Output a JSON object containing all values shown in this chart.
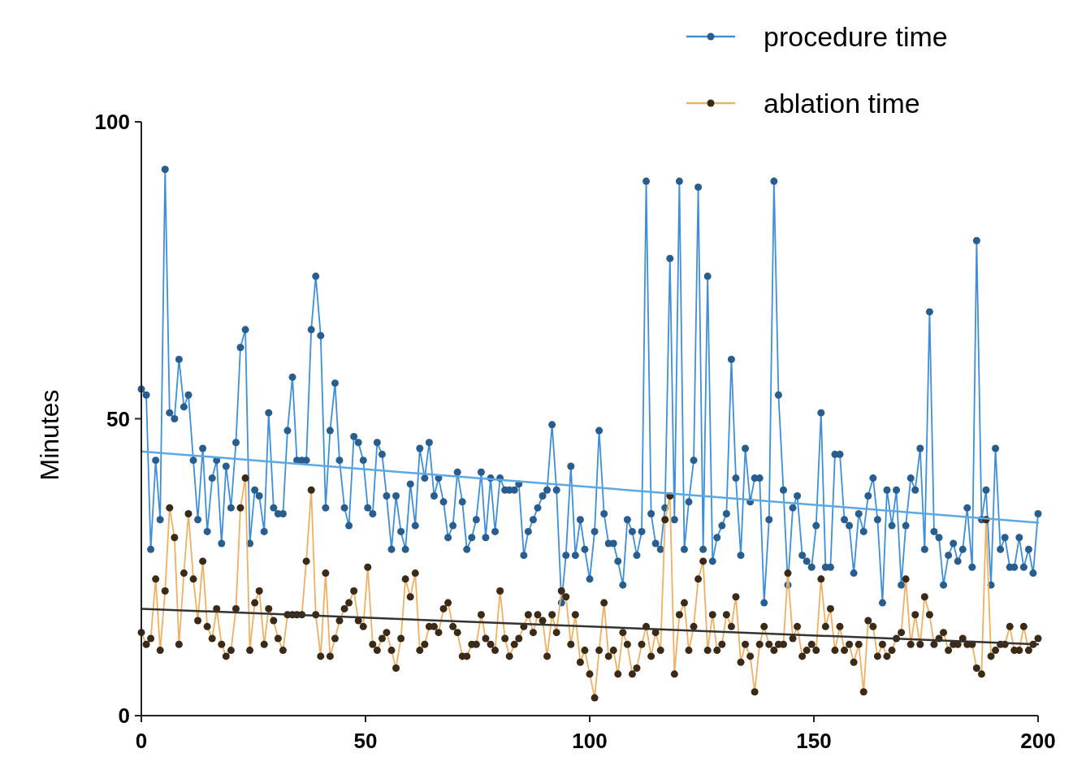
{
  "chart_data": {
    "type": "line",
    "ylabel": "Minutes",
    "xlim": [
      0,
      200
    ],
    "ylim": [
      0,
      100
    ],
    "xticks": [
      0,
      50,
      100,
      150,
      200
    ],
    "yticks": [
      0,
      50,
      100
    ],
    "grid": false,
    "legend": "top right",
    "marker": "circle",
    "line_style": "solid",
    "x": [
      0,
      1.1,
      2.1,
      3.2,
      4.2,
      5.3,
      6.3,
      7.4,
      8.4,
      9.5,
      10.5,
      11.6,
      12.6,
      13.7,
      14.7,
      15.8,
      16.8,
      17.9,
      18.9,
      20,
      21.1,
      22.1,
      23.2,
      24.2,
      25.3,
      26.3,
      27.4,
      28.4,
      29.5,
      30.5,
      31.6,
      32.6,
      33.7,
      34.7,
      35.8,
      36.8,
      37.9,
      38.9,
      40,
      41.1,
      42.1,
      43.2,
      44.2,
      45.3,
      46.3,
      47.4,
      48.4,
      49.5,
      50.5,
      51.6,
      52.6,
      53.7,
      54.7,
      55.8,
      56.8,
      57.9,
      58.9,
      60,
      61.1,
      62.1,
      63.2,
      64.2,
      65.3,
      66.3,
      67.4,
      68.4,
      69.5,
      70.5,
      71.6,
      72.6,
      73.7,
      74.7,
      75.8,
      76.8,
      77.9,
      78.9,
      80,
      81.1,
      82.1,
      83.2,
      84.2,
      85.3,
      86.3,
      87.4,
      88.4,
      89.5,
      90.5,
      91.6,
      92.6,
      93.7,
      94.7,
      95.8,
      96.8,
      97.9,
      98.9,
      100,
      101.1,
      102.1,
      103.2,
      104.2,
      105.3,
      106.3,
      107.4,
      108.4,
      109.5,
      110.5,
      111.6,
      112.6,
      113.7,
      114.7,
      115.8,
      116.8,
      117.9,
      118.9,
      120,
      121.1,
      122.1,
      123.2,
      124.2,
      125.3,
      126.3,
      127.4,
      128.4,
      129.5,
      130.5,
      131.6,
      132.6,
      133.7,
      134.7,
      135.8,
      136.8,
      137.9,
      138.9,
      140,
      141.1,
      142.1,
      143.2,
      144.2,
      145.3,
      146.3,
      147.4,
      148.4,
      149.5,
      150.5,
      151.6,
      152.6,
      153.7,
      154.7,
      155.8,
      156.8,
      157.9,
      158.9,
      160,
      161.1,
      162.1,
      163.2,
      164.2,
      165.3,
      166.3,
      167.4,
      168.4,
      169.5,
      170.5,
      171.6,
      172.6,
      173.7,
      174.7,
      175.8,
      176.8,
      177.9,
      178.9,
      180,
      181.1,
      182.1,
      183.2,
      184.2,
      185.3,
      186.3,
      187.4,
      188.4,
      189.5,
      190.5,
      191.6,
      192.6,
      193.7,
      194.7,
      195.8,
      196.8,
      197.9,
      198.9,
      200
    ],
    "series": [
      {
        "name": "procedure time",
        "color": "#3d8fdc",
        "values": [
          55,
          54,
          28,
          43,
          33,
          92,
          51,
          50,
          60,
          52,
          54,
          43,
          33,
          45,
          31,
          40,
          43,
          29,
          42,
          35,
          46,
          62,
          65,
          29,
          38,
          37,
          31,
          51,
          35,
          34,
          34,
          48,
          57,
          43,
          43,
          43,
          65,
          74,
          64,
          35,
          48,
          56,
          43,
          35,
          32,
          47,
          46,
          43,
          35,
          34,
          46,
          44,
          37,
          28,
          37,
          31,
          28,
          39,
          32,
          45,
          40,
          46,
          37,
          40,
          36,
          30,
          32,
          41,
          36,
          28,
          30,
          33,
          41,
          30,
          40,
          31,
          40,
          38,
          38,
          38,
          39,
          27,
          31,
          33,
          35,
          37,
          38,
          49,
          38,
          19,
          27,
          42,
          27,
          33,
          28,
          23,
          31,
          48,
          34,
          29,
          29,
          26,
          22,
          33,
          31,
          27,
          31,
          90,
          34,
          29,
          28,
          35,
          77,
          33,
          90,
          28,
          36,
          43,
          89,
          28,
          74,
          26,
          30,
          32,
          34,
          60,
          40,
          27,
          45,
          36,
          40,
          40,
          19,
          33,
          90,
          54,
          38,
          22,
          35,
          37,
          27,
          26,
          25,
          32,
          51,
          25,
          25,
          44,
          44,
          33,
          32,
          24,
          34,
          31,
          37,
          40,
          33,
          19,
          38,
          32,
          38,
          22,
          32,
          40,
          38,
          45,
          28,
          68,
          31,
          30,
          22,
          27,
          29,
          26,
          28,
          35,
          25,
          80,
          33,
          38,
          22,
          45,
          28,
          30,
          25,
          25,
          30,
          25,
          28,
          24,
          34
        ]
      },
      {
        "name": "ablation time",
        "color": "#f0b060",
        "values": [
          14,
          12,
          13,
          23,
          11,
          21,
          35,
          30,
          12,
          24,
          34,
          23,
          16,
          26,
          15,
          13,
          18,
          12,
          10,
          11,
          18,
          35,
          40,
          11,
          19,
          21,
          12,
          18,
          16,
          13,
          11,
          17,
          17,
          17,
          17,
          26,
          38,
          17,
          10,
          24,
          10,
          13,
          16,
          18,
          19,
          21,
          16,
          15,
          25,
          12,
          11,
          13,
          14,
          11,
          8,
          13,
          23,
          20,
          24,
          11,
          12,
          15,
          15,
          14,
          18,
          19,
          15,
          14,
          10,
          10,
          12,
          12,
          17,
          13,
          12,
          11,
          21,
          13,
          10,
          12,
          13,
          15,
          17,
          14,
          17,
          16,
          10,
          17,
          14,
          21,
          20,
          12,
          17,
          9,
          11,
          7,
          3,
          11,
          19,
          10,
          11,
          7,
          14,
          12,
          7,
          8,
          12,
          15,
          10,
          14,
          11,
          33,
          37,
          7,
          17,
          19,
          11,
          15,
          23,
          26,
          11,
          17,
          11,
          12,
          17,
          15,
          20,
          9,
          12,
          10,
          4,
          12,
          15,
          12,
          11,
          12,
          12,
          24,
          13,
          15,
          10,
          11,
          12,
          11,
          23,
          15,
          18,
          11,
          15,
          11,
          12,
          9,
          12,
          4,
          16,
          15,
          10,
          12,
          10,
          11,
          13,
          14,
          23,
          12,
          17,
          12,
          20,
          17,
          12,
          13,
          14,
          11,
          12,
          12,
          13,
          12,
          12,
          8,
          7,
          33,
          10,
          11,
          12,
          12,
          15,
          11,
          11,
          15,
          11,
          12,
          13
        ]
      },
      {
        "type": "line",
        "marker": "none",
        "color": "#5aa8e6",
        "x": [
          0,
          100,
          200
        ],
        "values": [
          44.5,
          38.5,
          32.5
        ]
      },
      {
        "type": "line",
        "marker": "none",
        "color": "#333333",
        "x": [
          0,
          100,
          200
        ],
        "values": [
          18,
          15,
          12
        ]
      }
    ]
  }
}
